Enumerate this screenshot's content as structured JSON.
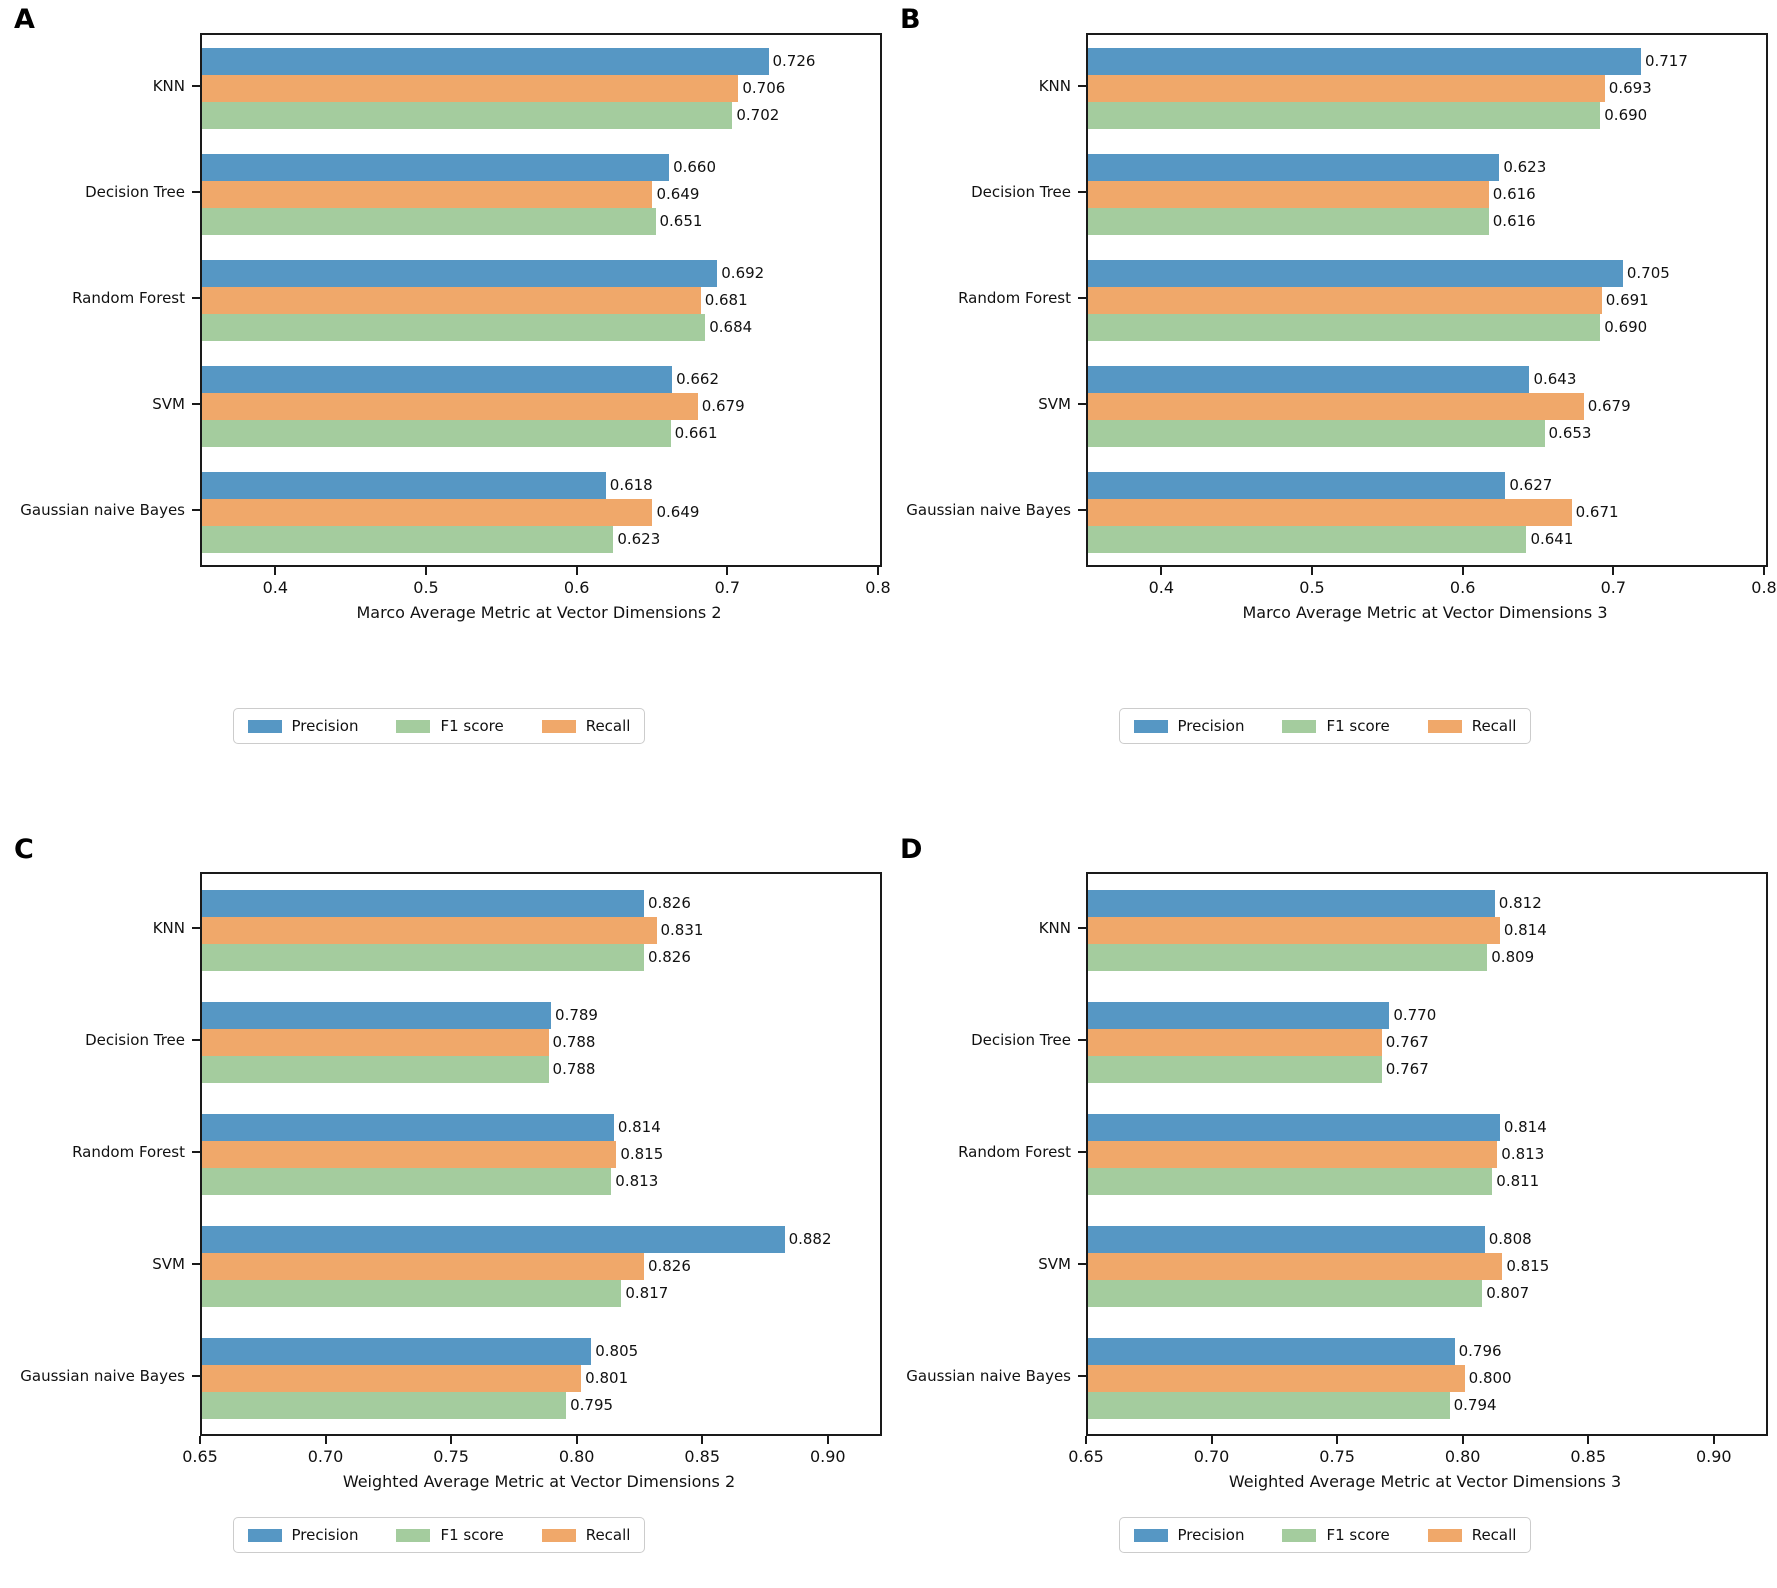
{
  "figure": {
    "background": "#ffffff",
    "text_color": "#111111",
    "spine_color": "#1a1a1a",
    "colors": {
      "precision": "#5697C4",
      "recall": "#F0A86A",
      "f1": "#A4CC9E"
    },
    "bar_order": [
      "precision",
      "recall",
      "f1"
    ],
    "legend": [
      {
        "key": "precision",
        "label": "Precision"
      },
      {
        "key": "f1",
        "label": "F1 score"
      },
      {
        "key": "recall",
        "label": "Recall"
      }
    ],
    "value_label_format": "3-decimals",
    "legend_position": "below-axis"
  },
  "chart_data": [
    {
      "panel_label": "A",
      "type": "bar",
      "orientation": "horizontal",
      "xlabel": "Marco Average Metric at Vector Dimensions 2",
      "xlim": [
        0.35,
        0.8
      ],
      "xticks": [
        "0.4",
        "0.5",
        "0.6",
        "0.7",
        "0.8"
      ],
      "xtick_values": [
        0.4,
        0.5,
        0.6,
        0.7,
        0.8
      ],
      "grid": false,
      "categories": [
        "KNN",
        "Decision Tree",
        "Random Forest",
        "SVM",
        "Gaussian naive Bayes"
      ],
      "series": [
        {
          "key": "precision",
          "name": "Precision",
          "values": [
            0.726,
            0.66,
            0.692,
            0.662,
            0.618
          ]
        },
        {
          "key": "recall",
          "name": "Recall",
          "values": [
            0.706,
            0.649,
            0.681,
            0.679,
            0.649
          ]
        },
        {
          "key": "f1",
          "name": "F1 score",
          "values": [
            0.702,
            0.651,
            0.684,
            0.661,
            0.623
          ]
        }
      ]
    },
    {
      "panel_label": "B",
      "type": "bar",
      "orientation": "horizontal",
      "xlabel": "Marco Average Metric at Vector Dimensions 3",
      "xlim": [
        0.35,
        0.8
      ],
      "xticks": [
        "0.4",
        "0.5",
        "0.6",
        "0.7",
        "0.8"
      ],
      "xtick_values": [
        0.4,
        0.5,
        0.6,
        0.7,
        0.8
      ],
      "grid": false,
      "categories": [
        "KNN",
        "Decision Tree",
        "Random Forest",
        "SVM",
        "Gaussian naive Bayes"
      ],
      "series": [
        {
          "key": "precision",
          "name": "Precision",
          "values": [
            0.717,
            0.623,
            0.705,
            0.643,
            0.627
          ]
        },
        {
          "key": "recall",
          "name": "Recall",
          "values": [
            0.693,
            0.616,
            0.691,
            0.679,
            0.671
          ]
        },
        {
          "key": "f1",
          "name": "F1 score",
          "values": [
            0.69,
            0.616,
            0.69,
            0.653,
            0.641
          ]
        }
      ]
    },
    {
      "panel_label": "C",
      "type": "bar",
      "orientation": "horizontal",
      "xlabel": "Weighted Average Metric at Vector Dimensions 2",
      "xlim": [
        0.65,
        0.92
      ],
      "xticks": [
        "0.65",
        "0.70",
        "0.75",
        "0.80",
        "0.85",
        "0.90"
      ],
      "xtick_values": [
        0.65,
        0.7,
        0.75,
        0.8,
        0.85,
        0.9
      ],
      "grid": false,
      "categories": [
        "KNN",
        "Decision Tree",
        "Random Forest",
        "SVM",
        "Gaussian naive Bayes"
      ],
      "series": [
        {
          "key": "precision",
          "name": "Precision",
          "values": [
            0.826,
            0.789,
            0.814,
            0.882,
            0.805
          ]
        },
        {
          "key": "recall",
          "name": "Recall",
          "values": [
            0.831,
            0.788,
            0.815,
            0.826,
            0.801
          ]
        },
        {
          "key": "f1",
          "name": "F1 score",
          "values": [
            0.826,
            0.788,
            0.813,
            0.817,
            0.795
          ]
        }
      ]
    },
    {
      "panel_label": "D",
      "type": "bar",
      "orientation": "horizontal",
      "xlabel": "Weighted Average Metric at Vector Dimensions 3",
      "xlim": [
        0.65,
        0.92
      ],
      "xticks": [
        "0.65",
        "0.70",
        "0.75",
        "0.80",
        "0.85",
        "0.90"
      ],
      "xtick_values": [
        0.65,
        0.7,
        0.75,
        0.8,
        0.85,
        0.9
      ],
      "grid": false,
      "categories": [
        "KNN",
        "Decision Tree",
        "Random Forest",
        "SVM",
        "Gaussian naive Bayes"
      ],
      "series": [
        {
          "key": "precision",
          "name": "Precision",
          "values": [
            0.812,
            0.77,
            0.814,
            0.808,
            0.796
          ]
        },
        {
          "key": "recall",
          "name": "Recall",
          "values": [
            0.814,
            0.767,
            0.813,
            0.815,
            0.8
          ]
        },
        {
          "key": "f1",
          "name": "F1 score",
          "values": [
            0.809,
            0.767,
            0.811,
            0.807,
            0.794
          ]
        }
      ]
    }
  ]
}
